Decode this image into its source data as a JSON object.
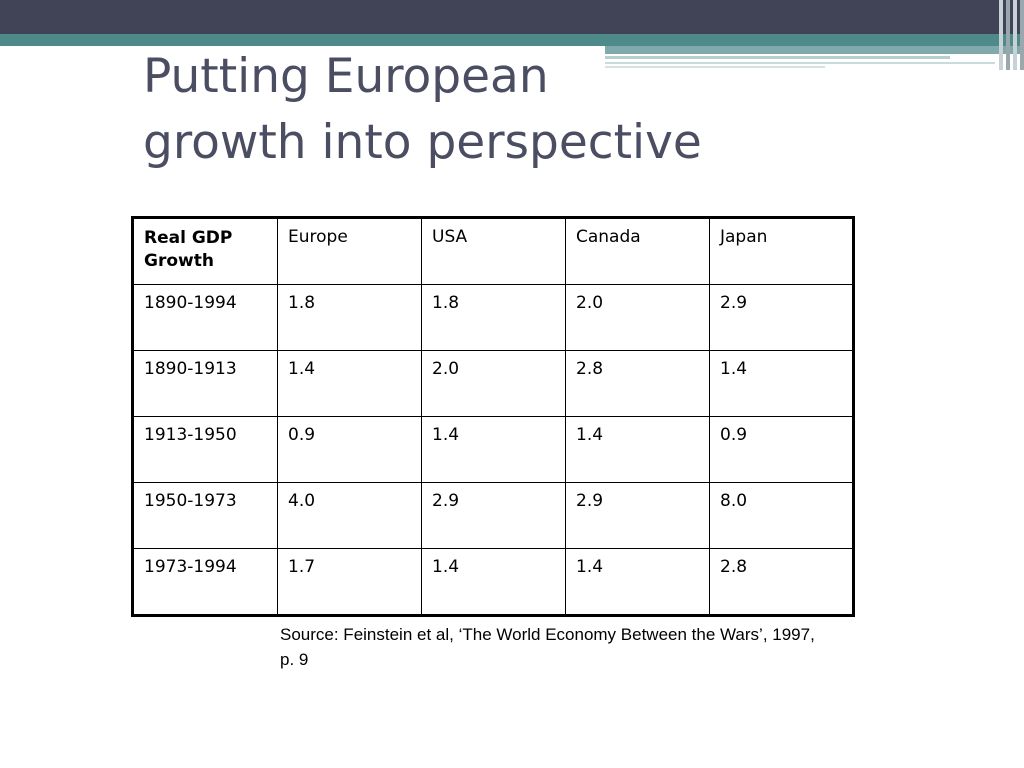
{
  "slide": {
    "title_lines": [
      "Putting European",
      "growth into perspective"
    ]
  },
  "table": {
    "corner_header": "Real GDP Growth",
    "columns": [
      "Europe",
      "USA",
      "Canada",
      "Japan"
    ],
    "rows": [
      {
        "period": "1890-1994",
        "values": [
          "1.8",
          "1.8",
          "2.0",
          "2.9"
        ]
      },
      {
        "period": "1890-1913",
        "values": [
          "1.4",
          "2.0",
          "2.8",
          "1.4"
        ]
      },
      {
        "period": "1913-1950",
        "values": [
          "0.9",
          "1.4",
          "1.4",
          "0.9"
        ]
      },
      {
        "period": "1950-1973",
        "values": [
          "4.0",
          "2.9",
          "2.9",
          "8.0"
        ]
      },
      {
        "period": "1973-1994",
        "values": [
          "1.7",
          "1.4",
          "1.4",
          "2.8"
        ]
      }
    ]
  },
  "source_note": "Source: Feinstein et al, ‘The World Economy Between the Wars’, 1997, p. 9",
  "colors": {
    "header_dark": "#414357",
    "header_teal": "#4f8a8b",
    "title_text": "#4b4e63"
  }
}
